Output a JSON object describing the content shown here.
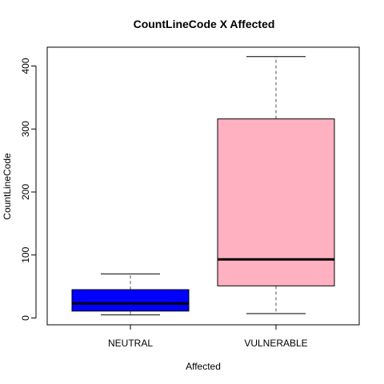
{
  "chart_data": {
    "type": "boxplot",
    "title": "CountLineCode X Affected",
    "xlabel": "Affected",
    "ylabel": "CountLineCode",
    "categories": [
      "NEUTRAL",
      "VULNERABLE"
    ],
    "boxes": [
      {
        "category": "NEUTRAL",
        "whisker_low": 5,
        "q1": 11,
        "median": 23,
        "q3": 45,
        "whisker_high": 70,
        "color": "#0000ff"
      },
      {
        "category": "VULNERABLE",
        "whisker_low": 7,
        "q1": 51,
        "median": 93,
        "q3": 316,
        "whisker_high": 415,
        "color": "#ffb1c2"
      }
    ],
    "ylim": [
      -10,
      432
    ],
    "yticks": [
      0,
      100,
      200,
      300,
      400
    ],
    "grid": false,
    "legend": "none"
  }
}
